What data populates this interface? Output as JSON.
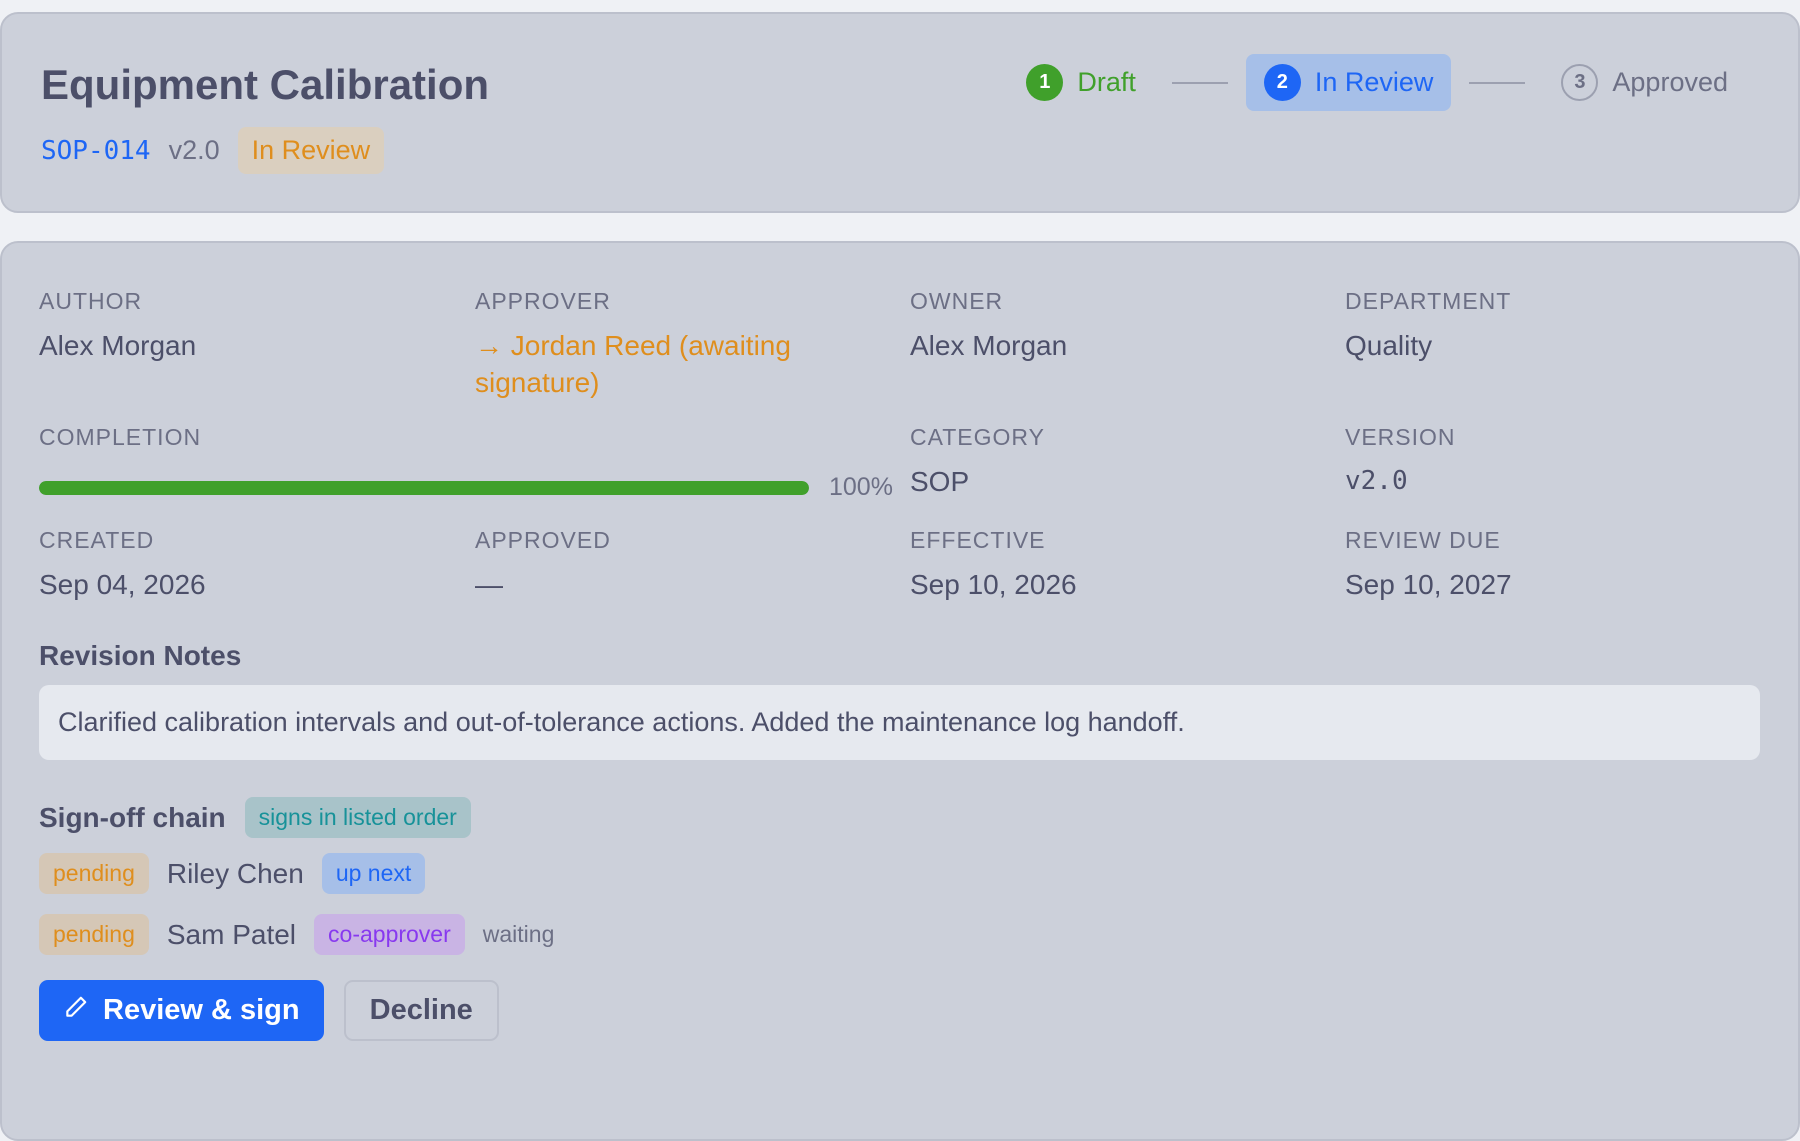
{
  "document": {
    "title": "Equipment Calibration",
    "id": "SOP-014",
    "version": "v2.0",
    "status": "In Review"
  },
  "stepper": {
    "steps": [
      {
        "number": "1",
        "label": "Draft",
        "state": "done"
      },
      {
        "number": "2",
        "label": "In Review",
        "state": "active"
      },
      {
        "number": "3",
        "label": "Approved",
        "state": "future"
      }
    ]
  },
  "fields": {
    "author": {
      "label": "Author",
      "value": "Alex Morgan"
    },
    "approver": {
      "label": "Approver",
      "value": "→ Jordan Reed (awaiting signature)"
    },
    "owner": {
      "label": "Owner",
      "value": "Alex Morgan"
    },
    "department": {
      "label": "Department",
      "value": "Quality"
    },
    "completion": {
      "label": "Completion",
      "value": "100%",
      "fraction": 1.0
    },
    "category": {
      "label": "Category",
      "value": "SOP"
    },
    "version": {
      "label": "Version",
      "value": "v2.0"
    },
    "created": {
      "label": "Created",
      "value": "Sep 04, 2026"
    },
    "approved": {
      "label": "Approved",
      "value": "—"
    },
    "effective": {
      "label": "Effective",
      "value": "Sep 10, 2026"
    },
    "review_due": {
      "label": "Review Due",
      "value": "Sep 10, 2027"
    }
  },
  "revision_notes": {
    "title": "Revision Notes",
    "text": "Clarified calibration intervals and out-of-tolerance actions. Added the maintenance log handoff."
  },
  "signoff": {
    "title": "Sign-off chain",
    "order_badge": "signs in listed order",
    "signers": [
      {
        "status": "pending",
        "name": "Riley Chen",
        "tag": "up next",
        "note": ""
      },
      {
        "status": "pending",
        "name": "Sam Patel",
        "tag": "co-approver",
        "note": "waiting"
      }
    ]
  },
  "actions": {
    "primary": "Review & sign",
    "secondary": "Decline"
  },
  "colors": {
    "accent": "#1e66f5",
    "success": "#40a02b",
    "warning": "#df8e1d",
    "teal": "#179299",
    "purple": "#8839ef"
  },
  "icons": {
    "primary_button": "pen-icon"
  }
}
